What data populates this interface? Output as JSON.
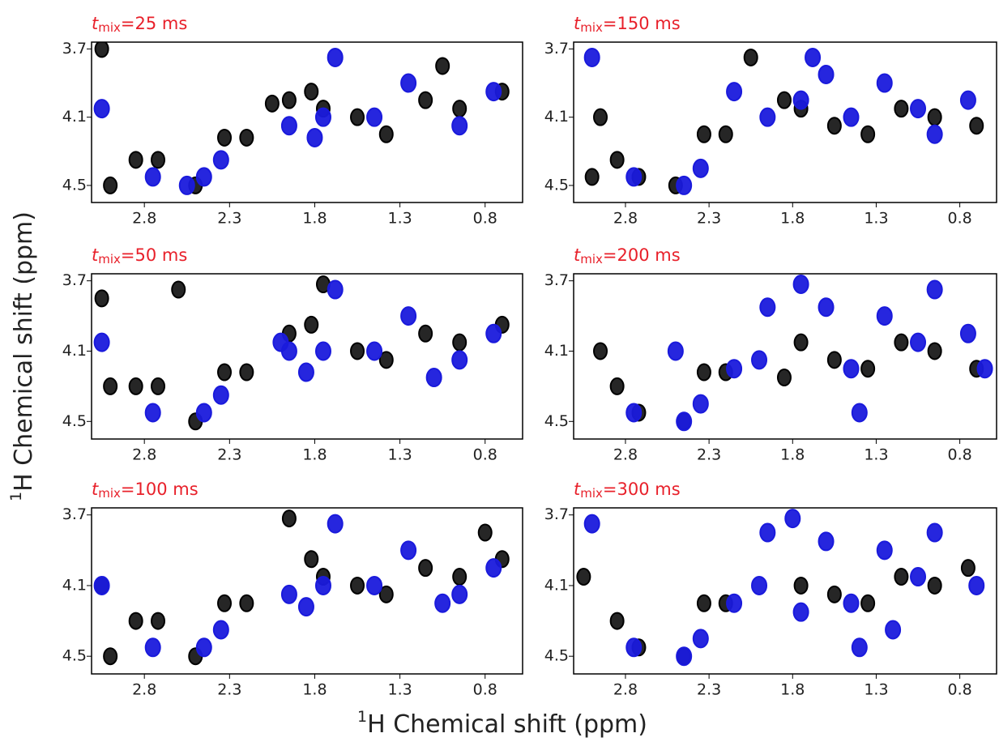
{
  "xlabel": [
    "1",
    "H Chemical shift (ppm)"
  ],
  "ylabel": [
    "1",
    "H Chemical shift (ppm)"
  ],
  "chart_data": [
    {
      "type": "contour",
      "title": [
        "t",
        "mix",
        "=25 ms"
      ],
      "xlim": [
        3.11,
        0.58
      ],
      "ylim": [
        3.66,
        4.6
      ],
      "xticks": [
        2.8,
        2.3,
        1.8,
        1.3,
        0.8
      ],
      "yticks": [
        3.7,
        4.1,
        4.5
      ],
      "series": [
        {
          "color": "#000000",
          "x": [
            3.05,
            2.85,
            2.72,
            2.33,
            2.2,
            1.95,
            1.75,
            1.55,
            1.38,
            1.15,
            0.95,
            0.7,
            2.5,
            1.82,
            3.0,
            1.05,
            2.05
          ],
          "y": [
            3.7,
            4.35,
            4.35,
            4.22,
            4.22,
            4.0,
            4.05,
            4.1,
            4.2,
            4.0,
            4.05,
            3.95,
            4.5,
            3.95,
            4.5,
            3.8,
            4.02
          ]
        },
        {
          "color": "#1a1adc",
          "x": [
            3.05,
            2.75,
            2.45,
            2.35,
            1.95,
            1.75,
            1.68,
            1.45,
            1.25,
            0.95,
            0.75,
            1.8,
            2.55
          ],
          "y": [
            4.05,
            4.45,
            4.45,
            4.35,
            4.15,
            4.1,
            3.75,
            4.1,
            3.9,
            4.15,
            3.95,
            4.22,
            4.5
          ]
        }
      ]
    },
    {
      "type": "contour",
      "title": [
        "t",
        "mix",
        "=150 ms"
      ],
      "xlim": [
        3.11,
        0.58
      ],
      "ylim": [
        3.66,
        4.6
      ],
      "xticks": [
        2.8,
        2.3,
        1.8,
        1.3,
        0.8
      ],
      "yticks": [
        3.7,
        4.1,
        4.5
      ],
      "series": [
        {
          "color": "#000000",
          "x": [
            2.95,
            2.85,
            2.72,
            2.33,
            2.2,
            1.75,
            1.55,
            1.35,
            1.15,
            0.95,
            0.7,
            2.5,
            3.0,
            1.85,
            2.05
          ],
          "y": [
            4.1,
            4.35,
            4.45,
            4.2,
            4.2,
            4.05,
            4.15,
            4.2,
            4.05,
            4.1,
            4.15,
            4.5,
            4.45,
            4.0,
            3.75
          ]
        },
        {
          "color": "#1a1adc",
          "x": [
            3.0,
            2.75,
            2.45,
            2.35,
            1.95,
            1.75,
            1.68,
            1.45,
            1.25,
            1.05,
            0.95,
            0.75,
            2.15,
            1.6
          ],
          "y": [
            3.75,
            4.45,
            4.5,
            4.4,
            4.1,
            4.0,
            3.75,
            4.1,
            3.9,
            4.05,
            4.2,
            4.0,
            3.95,
            3.85
          ]
        }
      ]
    },
    {
      "type": "contour",
      "title": [
        "t",
        "mix",
        "=50 ms"
      ],
      "xlim": [
        3.11,
        0.58
      ],
      "ylim": [
        3.66,
        4.6
      ],
      "xticks": [
        2.8,
        2.3,
        1.8,
        1.3,
        0.8
      ],
      "yticks": [
        3.7,
        4.1,
        4.5
      ],
      "series": [
        {
          "color": "#000000",
          "x": [
            3.05,
            2.85,
            2.72,
            2.33,
            2.2,
            1.95,
            1.75,
            1.55,
            1.38,
            1.15,
            0.95,
            0.7,
            2.5,
            1.82,
            3.0,
            2.6
          ],
          "y": [
            3.8,
            4.3,
            4.3,
            4.22,
            4.22,
            4.0,
            3.72,
            4.1,
            4.15,
            4.0,
            4.05,
            3.95,
            4.5,
            3.95,
            4.3,
            3.75
          ]
        },
        {
          "color": "#1a1adc",
          "x": [
            3.05,
            2.75,
            2.45,
            2.35,
            1.95,
            1.75,
            1.68,
            1.45,
            1.25,
            0.95,
            0.75,
            1.85,
            1.1,
            2.0
          ],
          "y": [
            4.05,
            4.45,
            4.45,
            4.35,
            4.1,
            4.1,
            3.75,
            4.1,
            3.9,
            4.15,
            4.0,
            4.22,
            4.25,
            4.05
          ]
        }
      ]
    },
    {
      "type": "contour",
      "title": [
        "t",
        "mix",
        "=200 ms"
      ],
      "xlim": [
        3.11,
        0.58
      ],
      "ylim": [
        3.66,
        4.6
      ],
      "xticks": [
        2.8,
        2.3,
        1.8,
        1.3,
        0.8
      ],
      "yticks": [
        3.7,
        4.1,
        4.5
      ],
      "series": [
        {
          "color": "#000000",
          "x": [
            2.95,
            2.85,
            2.72,
            2.33,
            2.2,
            1.75,
            1.55,
            1.35,
            1.15,
            0.95,
            0.7,
            2.45,
            1.85
          ],
          "y": [
            4.1,
            4.3,
            4.45,
            4.22,
            4.22,
            4.05,
            4.15,
            4.2,
            4.05,
            4.1,
            4.2,
            4.5,
            4.25
          ]
        },
        {
          "color": "#1a1adc",
          "x": [
            2.75,
            2.45,
            2.35,
            2.15,
            1.95,
            1.75,
            1.6,
            1.45,
            1.25,
            1.05,
            0.95,
            0.75,
            2.0,
            1.4,
            0.65,
            2.5
          ],
          "y": [
            4.45,
            4.5,
            4.4,
            4.2,
            3.85,
            3.72,
            3.85,
            4.2,
            3.9,
            4.05,
            3.75,
            4.0,
            4.15,
            4.45,
            4.2,
            4.1
          ]
        }
      ]
    },
    {
      "type": "contour",
      "title": [
        "t",
        "mix",
        "=100 ms"
      ],
      "xlim": [
        3.11,
        0.58
      ],
      "ylim": [
        3.66,
        4.6
      ],
      "xticks": [
        2.8,
        2.3,
        1.8,
        1.3,
        0.8
      ],
      "yticks": [
        3.7,
        4.1,
        4.5
      ],
      "series": [
        {
          "color": "#000000",
          "x": [
            3.05,
            2.85,
            2.72,
            2.33,
            2.2,
            1.95,
            1.75,
            1.55,
            1.38,
            1.15,
            0.95,
            0.7,
            2.5,
            1.82,
            3.0,
            0.8
          ],
          "y": [
            4.1,
            4.3,
            4.3,
            4.2,
            4.2,
            3.72,
            4.05,
            4.1,
            4.15,
            4.0,
            4.05,
            3.95,
            4.5,
            3.95,
            4.5,
            3.8
          ]
        },
        {
          "color": "#1a1adc",
          "x": [
            3.05,
            2.75,
            2.45,
            2.35,
            1.95,
            1.75,
            1.68,
            1.45,
            1.25,
            0.95,
            0.75,
            1.85,
            1.05
          ],
          "y": [
            4.1,
            4.45,
            4.45,
            4.35,
            4.15,
            4.1,
            3.75,
            4.1,
            3.9,
            4.15,
            4.0,
            4.22,
            4.2
          ]
        }
      ]
    },
    {
      "type": "contour",
      "title": [
        "t",
        "mix",
        "=300 ms"
      ],
      "xlim": [
        3.11,
        0.58
      ],
      "ylim": [
        3.66,
        4.6
      ],
      "xticks": [
        2.8,
        2.3,
        1.8,
        1.3,
        0.8
      ],
      "yticks": [
        3.7,
        4.1,
        4.5
      ],
      "series": [
        {
          "color": "#000000",
          "x": [
            3.05,
            2.85,
            2.72,
            2.33,
            2.2,
            1.75,
            1.55,
            1.35,
            1.15,
            0.95,
            0.75,
            2.45
          ],
          "y": [
            4.05,
            4.3,
            4.45,
            4.2,
            4.2,
            4.1,
            4.15,
            4.2,
            4.05,
            4.1,
            4.0,
            4.5
          ]
        },
        {
          "color": "#1a1adc",
          "x": [
            3.0,
            2.75,
            2.45,
            2.35,
            2.15,
            1.95,
            1.8,
            1.6,
            1.45,
            1.25,
            1.05,
            0.95,
            0.7,
            2.0,
            1.4,
            1.75,
            1.2
          ],
          "y": [
            3.75,
            4.45,
            4.5,
            4.4,
            4.2,
            3.8,
            3.72,
            3.85,
            4.2,
            3.9,
            4.05,
            3.8,
            4.1,
            4.1,
            4.45,
            4.25,
            4.35
          ]
        }
      ]
    }
  ]
}
